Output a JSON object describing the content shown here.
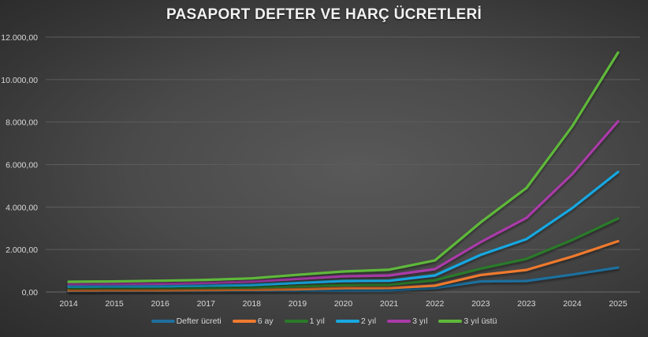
{
  "title": "PASAPORT DEFTER VE HARÇ ÜCRETLERİ",
  "chart_data": {
    "type": "line",
    "title": "PASAPORT DEFTER VE HARÇ ÜCRETLERİ",
    "xlabel": "",
    "ylabel": "",
    "categories": [
      "2014",
      "2015",
      "2016",
      "2017",
      "2018",
      "2019",
      "2020",
      "2021",
      "2022",
      "2023",
      "2023",
      "2024",
      "2025"
    ],
    "ylim": [
      0,
      12000
    ],
    "yticks": [
      "0,00",
      "2.000,00",
      "4.000,00",
      "6.000,00",
      "8.000,00",
      "10.000,00",
      "12.000,00"
    ],
    "grid": true,
    "legend_position": "bottom",
    "series": [
      {
        "name": "Defter ücreti",
        "color": "#1f6f9e",
        "values": [
          40,
          45,
          50,
          55,
          60,
          65,
          75,
          80,
          190,
          500,
          520,
          820,
          1150
        ]
      },
      {
        "name": "6 ay",
        "color": "#ee7a2f",
        "values": [
          75,
          80,
          80,
          90,
          100,
          130,
          186,
          190,
          300,
          800,
          1040,
          1670,
          2390
        ]
      },
      {
        "name": "1 yıl",
        "color": "#2a7a2a",
        "values": [
          185,
          190,
          195,
          200,
          210,
          270,
          335,
          346,
          558,
          1100,
          1560,
          2450,
          3460
        ]
      },
      {
        "name": "2 yıl",
        "color": "#19a7e0",
        "values": [
          260,
          265,
          270,
          300,
          335,
          430,
          520,
          532,
          780,
          1750,
          2490,
          3950,
          5650
        ]
      },
      {
        "name": "3 yıl",
        "color": "#a93aa8",
        "values": [
          370,
          380,
          390,
          430,
          494,
          620,
          743,
          780,
          1078,
          2350,
          3490,
          5550,
          8030
        ]
      },
      {
        "name": "3 yıl üstü",
        "color": "#5fb83a",
        "values": [
          483,
          500,
          532,
          570,
          643,
          810,
          967,
          1050,
          1487,
          3280,
          4900,
          7800,
          11270
        ]
      }
    ]
  }
}
